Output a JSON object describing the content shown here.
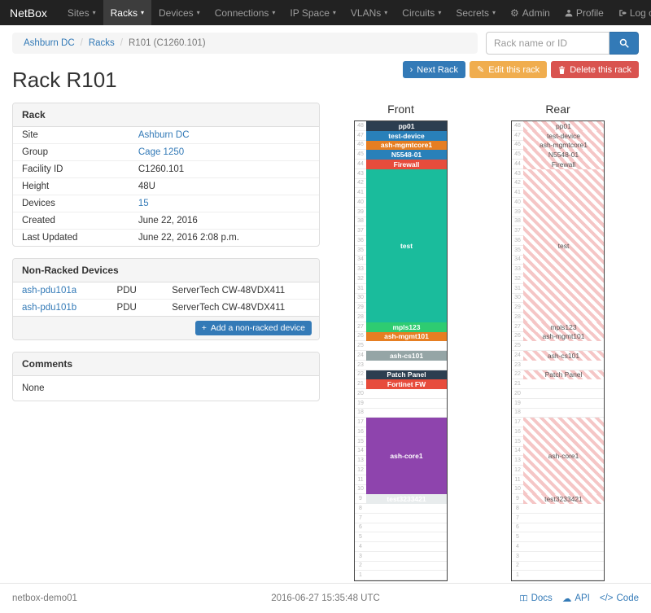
{
  "navbar": {
    "brand": "NetBox",
    "items": [
      {
        "label": "Sites",
        "active": false
      },
      {
        "label": "Racks",
        "active": true
      },
      {
        "label": "Devices",
        "active": false
      },
      {
        "label": "Connections",
        "active": false
      },
      {
        "label": "IP Space",
        "active": false
      },
      {
        "label": "VLANs",
        "active": false
      },
      {
        "label": "Circuits",
        "active": false
      },
      {
        "label": "Secrets",
        "active": false
      }
    ],
    "right_items": [
      {
        "label": "Admin",
        "icon": "gear-icon"
      },
      {
        "label": "Profile",
        "icon": "user-icon"
      },
      {
        "label": "Log out",
        "icon": "logout-icon"
      }
    ]
  },
  "breadcrumb": {
    "items": [
      {
        "label": "Ashburn DC",
        "link": true
      },
      {
        "label": "Racks",
        "link": true
      },
      {
        "label": "R101 (C1260.101)",
        "link": false
      }
    ]
  },
  "search": {
    "placeholder": "Rack name or ID"
  },
  "actions": [
    {
      "label": "Next Rack",
      "style": "primary",
      "icon": "chevron-right-icon"
    },
    {
      "label": "Edit this rack",
      "style": "warning",
      "icon": "pencil-icon"
    },
    {
      "label": "Delete this rack",
      "style": "danger",
      "icon": "trash-icon"
    }
  ],
  "page_title": "Rack R101",
  "rack_panel": {
    "title": "Rack",
    "rows": [
      {
        "label": "Site",
        "value": "Ashburn DC",
        "link": true
      },
      {
        "label": "Group",
        "value": "Cage 1250",
        "link": true
      },
      {
        "label": "Facility ID",
        "value": "C1260.101",
        "link": false
      },
      {
        "label": "Height",
        "value": "48U",
        "link": false
      },
      {
        "label": "Devices",
        "value": "15",
        "link": true
      },
      {
        "label": "Created",
        "value": "June 22, 2016",
        "link": false
      },
      {
        "label": "Last Updated",
        "value": "June 22, 2016 2:08 p.m.",
        "link": false
      }
    ]
  },
  "non_racked_panel": {
    "title": "Non-Racked Devices",
    "devices": [
      {
        "name": "ash-pdu101a",
        "role": "PDU",
        "type": "ServerTech CW-48VDX411"
      },
      {
        "name": "ash-pdu101b",
        "role": "PDU",
        "type": "ServerTech CW-48VDX411"
      }
    ],
    "add_button_label": "Add a non-racked device"
  },
  "comments_panel": {
    "title": "Comments",
    "body": "None"
  },
  "elevations": {
    "front_title": "Front",
    "rear_title": "Rear",
    "height_units": 48,
    "front_units": [
      {
        "u": 48,
        "h": 1,
        "label": "pp01",
        "color": "#2c3e50"
      },
      {
        "u": 47,
        "h": 1,
        "label": "test-device",
        "color": "#2980b9"
      },
      {
        "u": 46,
        "h": 1,
        "label": "ash-mgmtcore1",
        "color": "#e67e22"
      },
      {
        "u": 45,
        "h": 1,
        "label": "N5548-01",
        "color": "#2980b9"
      },
      {
        "u": 44,
        "h": 1,
        "label": "Firewall",
        "color": "#e74c3c"
      },
      {
        "u": 43,
        "h": 16,
        "label": "test",
        "color": "#1abc9c"
      },
      {
        "u": 27,
        "h": 1,
        "label": "mpls123",
        "color": "#2ecc71"
      },
      {
        "u": 26,
        "h": 1,
        "label": "ash-mgmt101",
        "color": "#e67e22"
      },
      {
        "u": 24,
        "h": 1,
        "label": "ash-cs101",
        "color": "#95a5a6"
      },
      {
        "u": 22,
        "h": 1,
        "label": "Patch Panel",
        "color": "#2c3e50"
      },
      {
        "u": 21,
        "h": 1,
        "label": "Fortinet FW",
        "color": "#e74c3c"
      },
      {
        "u": 17,
        "h": 8,
        "label": "ash-core1",
        "color": "#8e44ad"
      },
      {
        "u": 9,
        "h": 1,
        "label": "test3233421",
        "color": "#e8eced",
        "text_color": "#ffffff"
      }
    ],
    "rear_units": [
      {
        "u": 48,
        "h": 1,
        "label": "pp01"
      },
      {
        "u": 47,
        "h": 1,
        "label": "test-device"
      },
      {
        "u": 46,
        "h": 1,
        "label": "ash-mgmtcore1"
      },
      {
        "u": 45,
        "h": 1,
        "label": "N5548-01"
      },
      {
        "u": 44,
        "h": 1,
        "label": "Firewall"
      },
      {
        "u": 43,
        "h": 16,
        "label": "test"
      },
      {
        "u": 27,
        "h": 1,
        "label": "mpls123"
      },
      {
        "u": 26,
        "h": 1,
        "label": "ash-mgmt101"
      },
      {
        "u": 24,
        "h": 1,
        "label": "ash-cs101"
      },
      {
        "u": 22,
        "h": 1,
        "label": "Patch Panel"
      },
      {
        "u": 17,
        "h": 8,
        "label": "ash-core1"
      },
      {
        "u": 9,
        "h": 1,
        "label": "test3233421"
      }
    ]
  },
  "footer": {
    "hostname": "netbox-demo01",
    "timestamp": "2016-06-27 15:35:48 UTC",
    "links": [
      {
        "label": "Docs",
        "icon": "book-icon"
      },
      {
        "label": "API",
        "icon": "cloud-icon"
      },
      {
        "label": "Code",
        "icon": "code-icon"
      }
    ]
  },
  "colors": {
    "navbar_bg": "#222222",
    "link": "#337ab7",
    "primary": "#337ab7",
    "warning": "#f0ad4e",
    "danger": "#d9534f",
    "rear_stripe": "#f5c6c6"
  }
}
